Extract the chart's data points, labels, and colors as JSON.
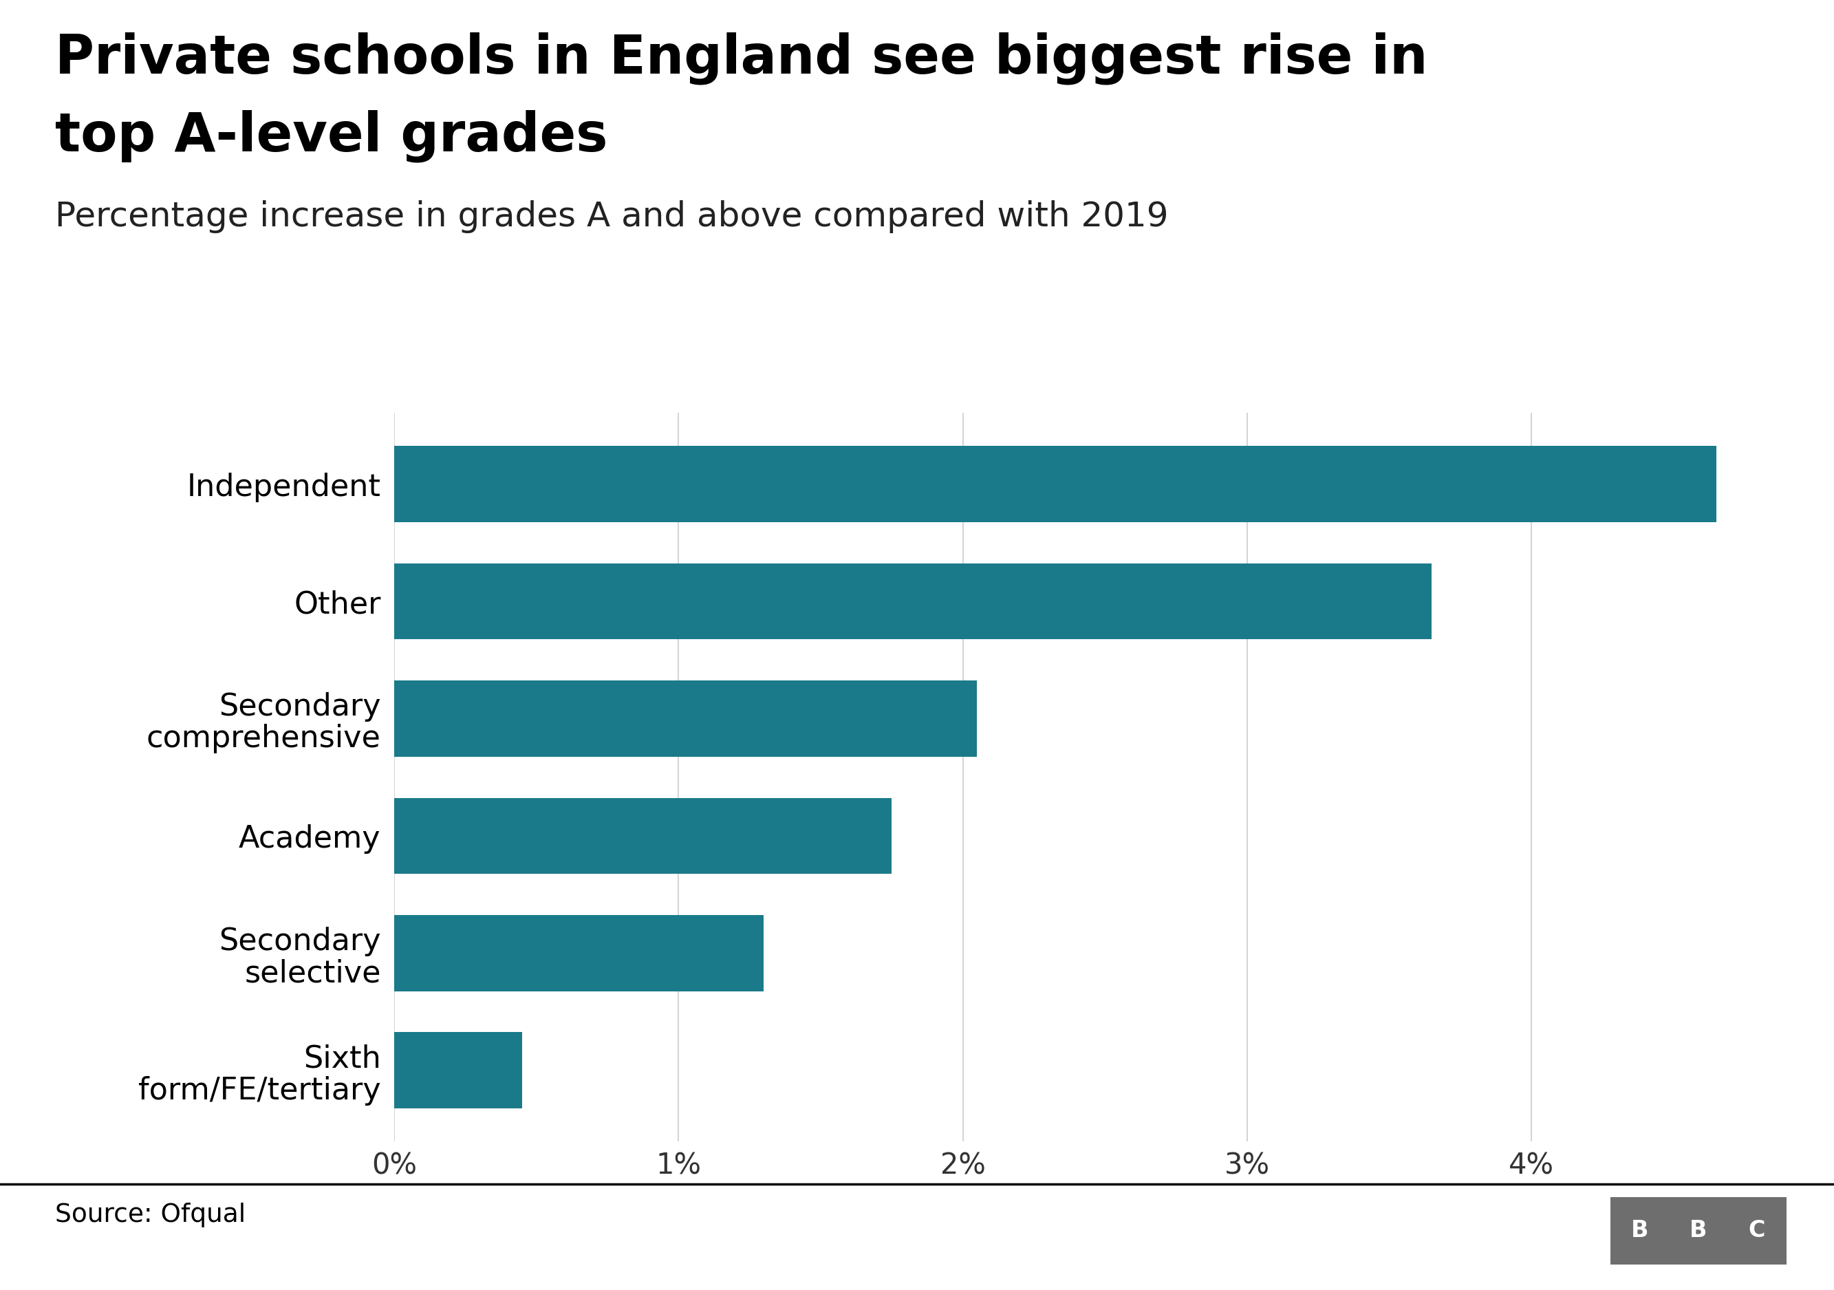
{
  "title_line1": "Private schools in England see biggest rise in",
  "title_line2": "top A-level grades",
  "subtitle": "Percentage increase in grades A and above compared with 2019",
  "categories": [
    "Independent",
    "Other",
    "Secondary\ncomprehensive",
    "Academy",
    "Secondary\nselective",
    "Sixth\nform/FE/tertiary"
  ],
  "values": [
    4.65,
    3.65,
    2.05,
    1.75,
    1.3,
    0.45
  ],
  "bar_color": "#1a7a8a",
  "background_color": "#ffffff",
  "source_text": "Source: Ofqual",
  "xlim": [
    0,
    5.0
  ],
  "xticks": [
    0,
    1,
    2,
    3,
    4
  ],
  "xtick_labels": [
    "0%",
    "1%",
    "2%",
    "3%",
    "4%"
  ],
  "title_fontsize": 56,
  "subtitle_fontsize": 36,
  "label_fontsize": 32,
  "tick_fontsize": 30,
  "source_fontsize": 27,
  "bar_height": 0.65,
  "title_color": "#000000",
  "subtitle_color": "#222222",
  "tick_color": "#333333",
  "grid_color": "#cccccc",
  "footer_line_color": "#000000",
  "bbc_box_color": "#6e6e6e"
}
